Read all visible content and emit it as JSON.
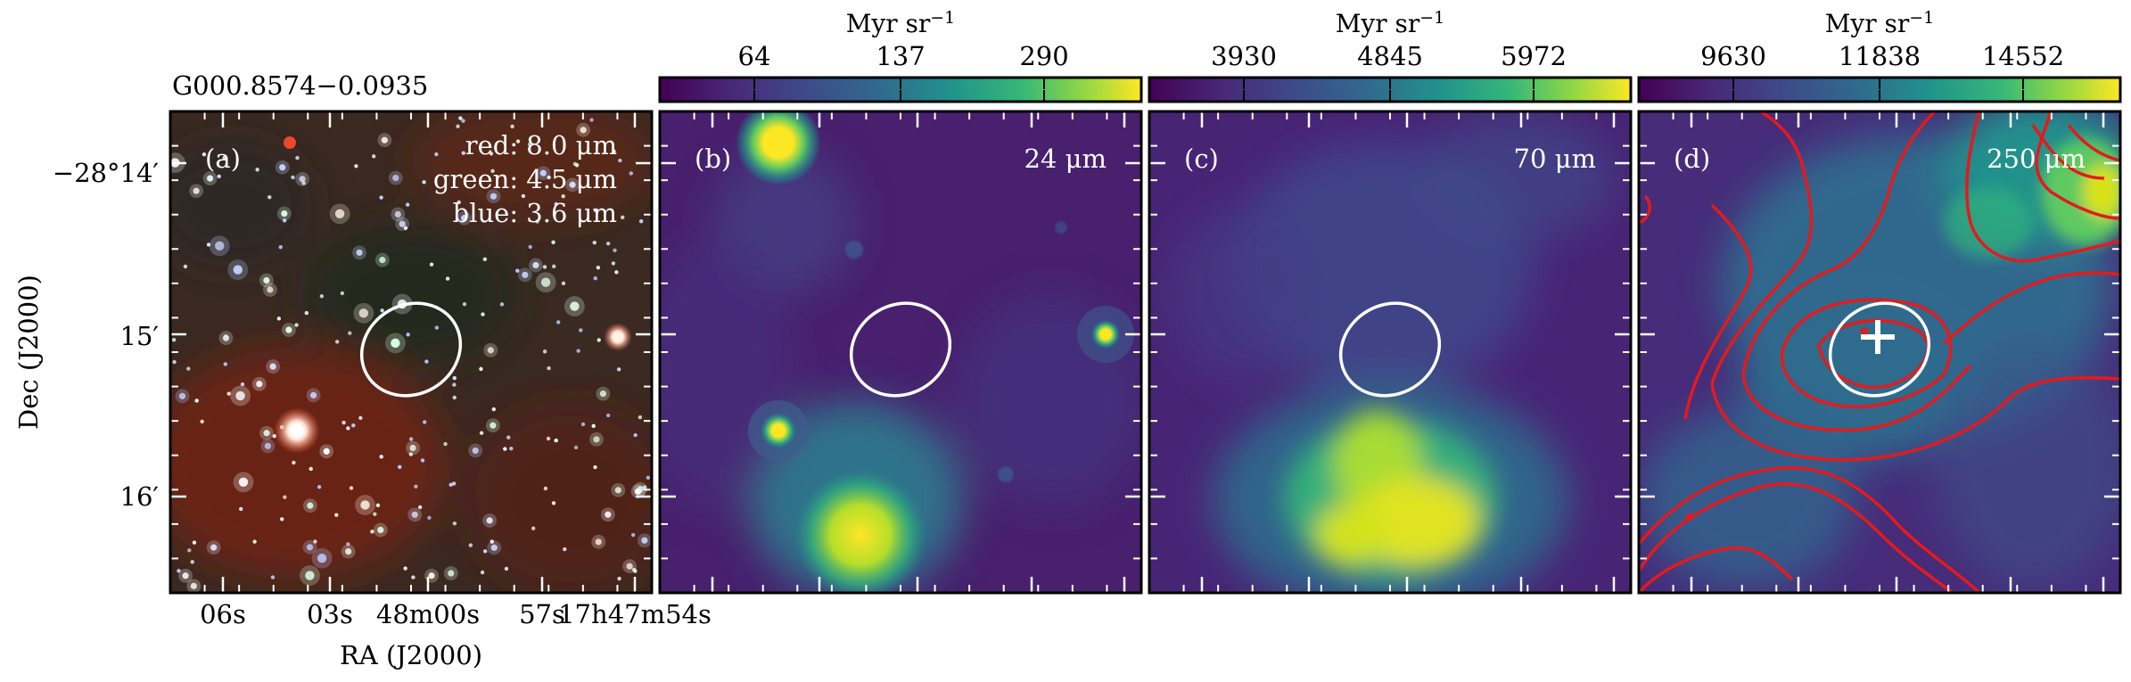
{
  "source_name": "G000.8574−0.0935",
  "colorbar_unit": "Myr sr",
  "colorbar_unit_exp": "−1",
  "panels": [
    {
      "label": "(a)",
      "rgb_legend": [
        "red: 8.0 μm",
        "green: 4.5 μm",
        "blue: 3.6 μm"
      ]
    },
    {
      "label": "(b)",
      "band": "24 μm",
      "colorbar_ticks": [
        "64",
        "137",
        "290"
      ]
    },
    {
      "label": "(c)",
      "band": "70 μm",
      "colorbar_ticks": [
        "3930",
        "4845",
        "5972"
      ]
    },
    {
      "label": "(d)",
      "band": "250 μm",
      "colorbar_ticks": [
        "9630",
        "11838",
        "14552"
      ]
    }
  ],
  "axes": {
    "ylabel": "Dec (J2000)",
    "xlabel": "RA (J2000)",
    "dec_ticks": [
      "−28°14′",
      "15′",
      "16′"
    ],
    "ra_ticks": [
      "06s",
      "03s",
      "48m00s",
      "57s",
      "17h47m54s"
    ]
  },
  "colors": {
    "viridis_dark": "#440154",
    "viridis_mid": "#21918c",
    "viridis_bright": "#fde725",
    "contour": "#e41a1c",
    "ellipse": "#ffffff"
  }
}
